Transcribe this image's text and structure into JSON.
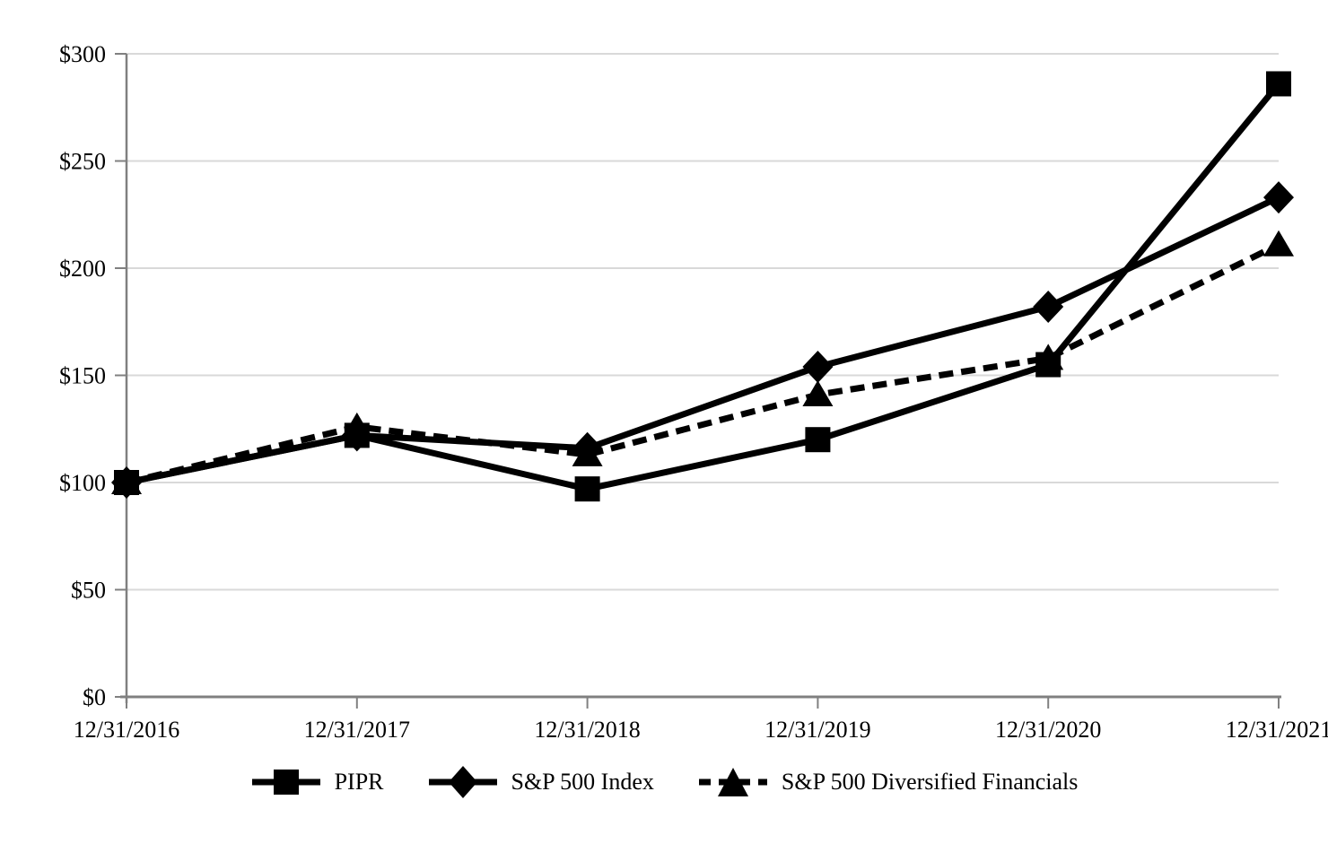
{
  "chart_data": {
    "type": "line",
    "categories": [
      "12/31/2016",
      "12/31/2017",
      "12/31/2018",
      "12/31/2019",
      "12/31/2020",
      "12/31/2021"
    ],
    "y_ticks": [
      "$0",
      "$50",
      "$100",
      "$150",
      "$200",
      "$250",
      "$300"
    ],
    "ylim": [
      0,
      300
    ],
    "y_tick_step": 50,
    "grid": "horizontal-only",
    "legend_position": "bottom-center",
    "series": [
      {
        "name": "PIPR",
        "marker": "square",
        "line": "solid",
        "values": [
          100,
          122,
          97,
          120,
          155,
          286
        ]
      },
      {
        "name": "S&P 500 Index",
        "marker": "diamond",
        "line": "solid",
        "values": [
          100,
          122,
          116,
          154,
          182,
          233
        ]
      },
      {
        "name": "S&P 500 Diversified Financials",
        "marker": "triangle",
        "line": "dashed",
        "values": [
          100,
          126,
          113,
          141,
          158,
          211
        ]
      }
    ],
    "colors": {
      "series": "#000000",
      "gridline": "#d9d9d9",
      "axis": "#808080",
      "text": "#000000"
    }
  }
}
